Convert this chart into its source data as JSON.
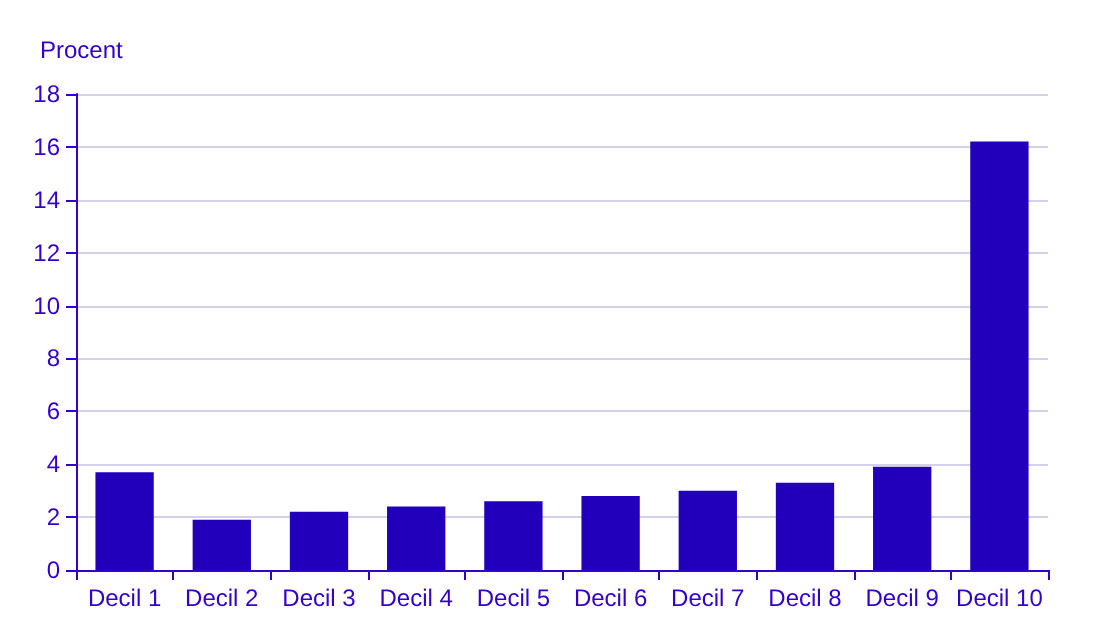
{
  "chart_data": {
    "type": "bar",
    "ylabel": "Procent",
    "categories": [
      "Decil 1",
      "Decil 2",
      "Decil 3",
      "Decil 4",
      "Decil 5",
      "Decil 6",
      "Decil 7",
      "Decil 8",
      "Decil 9",
      "Decil 10"
    ],
    "values": [
      3.7,
      1.9,
      2.2,
      2.4,
      2.6,
      2.8,
      3.0,
      3.3,
      3.9,
      16.2
    ],
    "color": "#2200bb",
    "ylim": [
      0,
      18
    ],
    "yticks": [
      0,
      2,
      4,
      6,
      8,
      10,
      12,
      14,
      16,
      18
    ],
    "grid": "y"
  }
}
